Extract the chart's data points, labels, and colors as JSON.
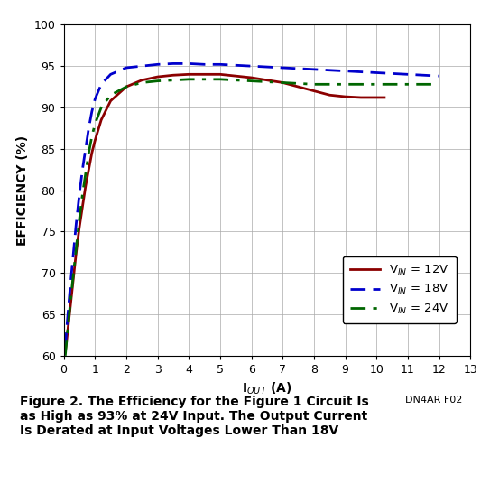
{
  "title": "",
  "xlabel": "I$_{OUT}$ (A)",
  "ylabel": "EFFICIENCY (%)",
  "xlim": [
    0,
    13
  ],
  "ylim": [
    60,
    100
  ],
  "xticks": [
    0,
    1,
    2,
    3,
    4,
    5,
    6,
    7,
    8,
    9,
    10,
    11,
    12,
    13
  ],
  "yticks": [
    60,
    65,
    70,
    75,
    80,
    85,
    90,
    95,
    100
  ],
  "background_color": "#ffffff",
  "grid_color": "#aaaaaa",
  "caption": "Figure 2. The Efficiency for the Figure 1 Circuit Is\nas High as 93% at 24V Input. The Output Current\nIs Derated at Input Voltages Lower Than 18V",
  "watermark": "DN4AR F02",
  "curves": [
    {
      "label": "V_IN = 12V",
      "color": "#8b0000",
      "linestyle": "solid",
      "linewidth": 2.0,
      "x": [
        0.05,
        0.1,
        0.2,
        0.3,
        0.4,
        0.5,
        0.6,
        0.7,
        0.8,
        0.9,
        1.0,
        1.2,
        1.5,
        2.0,
        2.5,
        3.0,
        3.5,
        4.0,
        4.5,
        5.0,
        5.5,
        6.0,
        6.5,
        7.0,
        7.5,
        8.0,
        8.5,
        9.0,
        9.5,
        10.0,
        10.25
      ],
      "y": [
        60.5,
        62.0,
        65.5,
        69.0,
        72.5,
        75.5,
        78.0,
        80.5,
        82.5,
        84.5,
        86.0,
        88.5,
        90.8,
        92.5,
        93.3,
        93.7,
        93.9,
        94.0,
        94.0,
        94.0,
        93.8,
        93.6,
        93.3,
        93.0,
        92.5,
        92.0,
        91.5,
        91.3,
        91.2,
        91.2,
        91.2
      ]
    },
    {
      "label": "V_IN = 18V",
      "color": "#0000cc",
      "linestyle": "dashed",
      "linewidth": 2.0,
      "x": [
        0.05,
        0.1,
        0.2,
        0.3,
        0.4,
        0.5,
        0.6,
        0.7,
        0.8,
        0.9,
        1.0,
        1.2,
        1.5,
        2.0,
        2.5,
        3.0,
        3.5,
        4.0,
        4.5,
        5.0,
        5.5,
        6.0,
        6.5,
        7.0,
        7.5,
        8.0,
        8.5,
        9.0,
        9.5,
        10.0,
        10.5,
        11.0,
        11.5,
        12.0
      ],
      "y": [
        61.0,
        63.5,
        68.0,
        72.0,
        76.0,
        79.5,
        82.5,
        85.0,
        87.5,
        89.5,
        91.0,
        92.8,
        94.0,
        94.8,
        95.0,
        95.2,
        95.3,
        95.3,
        95.2,
        95.2,
        95.1,
        95.0,
        94.9,
        94.8,
        94.7,
        94.6,
        94.5,
        94.4,
        94.3,
        94.2,
        94.1,
        94.0,
        93.9,
        93.8
      ]
    },
    {
      "label": "V_IN = 24V",
      "color": "#006600",
      "linestyle": "dashdot",
      "linewidth": 2.0,
      "x": [
        0.05,
        0.1,
        0.2,
        0.3,
        0.4,
        0.5,
        0.6,
        0.7,
        0.8,
        0.9,
        1.0,
        1.2,
        1.5,
        2.0,
        2.5,
        3.0,
        3.5,
        4.0,
        4.5,
        5.0,
        5.5,
        6.0,
        6.5,
        7.0,
        7.5,
        8.0,
        8.5,
        9.0,
        9.5,
        10.0,
        10.5,
        11.0,
        11.5,
        12.0
      ],
      "y": [
        60.0,
        62.0,
        66.0,
        69.5,
        73.0,
        76.5,
        79.5,
        82.0,
        84.5,
        86.5,
        88.0,
        90.0,
        91.5,
        92.5,
        93.0,
        93.2,
        93.3,
        93.4,
        93.4,
        93.4,
        93.3,
        93.2,
        93.1,
        93.0,
        92.9,
        92.8,
        92.8,
        92.8,
        92.8,
        92.8,
        92.8,
        92.8,
        92.8,
        92.8
      ]
    }
  ]
}
